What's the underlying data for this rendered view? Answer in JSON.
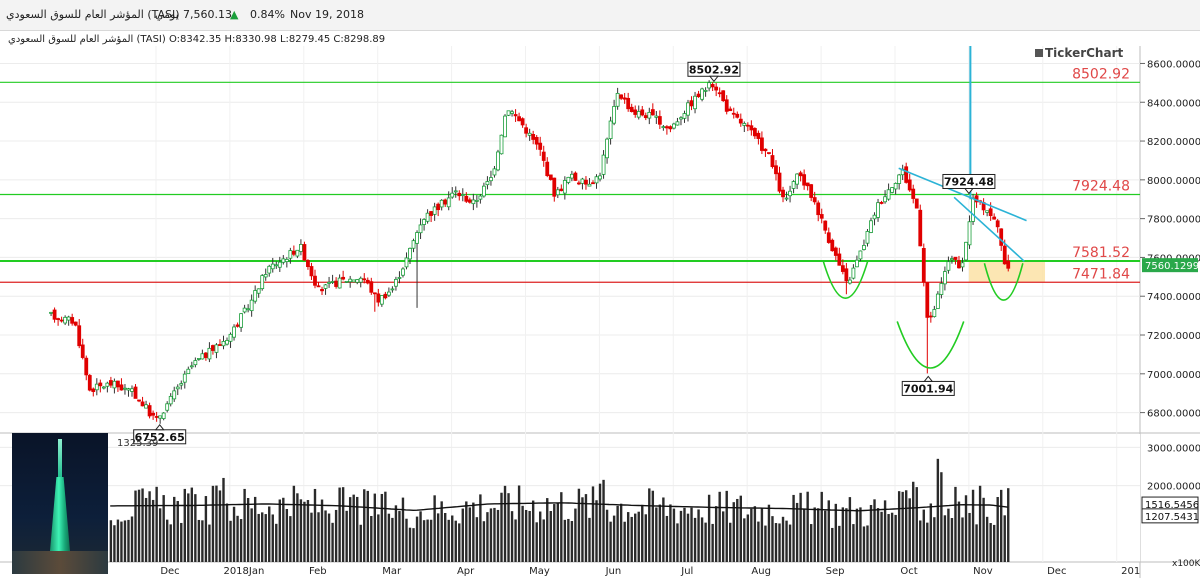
{
  "header": {
    "symbol_name": "المؤشر العام للسوق السعودي (TASI)",
    "period": "يومي",
    "price": "7,560.13",
    "change": "0.84%",
    "date": "Nov 19, 2018",
    "up_color": "#1a9e3a"
  },
  "info_line": "المؤشر العام للسوق السعودي (TASI) O:8342.35 H:8330.98 L:8279.45 C:8298.89",
  "watermark": "TickerChart",
  "price_axis": {
    "ticks": [
      "8600.0000",
      "8400.0000",
      "8200.0000",
      "8000.0000",
      "7800.0000",
      "7600.0000",
      "7400.0000",
      "7200.0000",
      "7000.0000",
      "6800.0000"
    ],
    "tick_values": [
      8600,
      8400,
      8200,
      8000,
      7800,
      7600,
      7400,
      7200,
      7000,
      6800
    ],
    "current_label": "7560.1299",
    "current_value": 7560.13,
    "current_color": "#2aa84a"
  },
  "volume_axis": {
    "ticks": [
      "3000.0000",
      "2000.0000"
    ],
    "tick_values": [
      3000,
      2000
    ],
    "label_a": "1516.5456",
    "label_b": "1207.5431",
    "value_a": 1516.5,
    "value_b": 1207.5,
    "unit": "x100K",
    "readout": "1325.39"
  },
  "months": [
    "Dec",
    "2018Jan",
    "Feb",
    "Mar",
    "Apr",
    "May",
    "Jun",
    "Jul",
    "Aug",
    "Sep",
    "Oct",
    "Nov",
    "Dec",
    "201"
  ],
  "chart_data": {
    "type": "candlestick",
    "y_range": [
      6700,
      8690
    ],
    "x_axis_labels": [
      "Dec",
      "2018Jan",
      "Feb",
      "Mar",
      "Apr",
      "May",
      "Jun",
      "Jul",
      "Aug",
      "Sep",
      "Oct",
      "Nov",
      "Dec",
      "201"
    ],
    "horizontal_levels": [
      {
        "value": 8502.92,
        "label": "8502.92",
        "color": "#22cc22"
      },
      {
        "value": 7924.48,
        "label": "7924.48",
        "color": "#22cc22"
      },
      {
        "value": 7581.52,
        "label": "7581.52",
        "color": "#22cc22"
      },
      {
        "value": 7471.84,
        "label": "7471.84",
        "color": "#dd2222"
      }
    ],
    "annotations": [
      {
        "label": "8502.92",
        "value": 8502.92,
        "month_index": 7.55
      },
      {
        "label": "7924.48",
        "value": 7924.48,
        "month_index": 11.0
      },
      {
        "label": "7001.94",
        "value": 7001.94,
        "month_index": 10.45
      },
      {
        "label": "6752.65",
        "value": 6752.65,
        "month_index": 0.05
      }
    ],
    "trend_lines": [
      {
        "from": [
          10.05,
          8060
        ],
        "to": [
          11.78,
          7790
        ],
        "color": "#2bb3d6"
      },
      {
        "from": [
          10.8,
          7910
        ],
        "to": [
          11.75,
          7580
        ],
        "color": "#2bb3d6"
      }
    ],
    "vertical_line": {
      "month_index": 11.02,
      "from": 7900,
      "to": 8690,
      "color": "#2bb3d6"
    },
    "cup_arcs": [
      {
        "center": 9.33,
        "half_width": 0.3,
        "top": 7580,
        "bottom": 7390,
        "color": "#22cc22"
      },
      {
        "center": 10.48,
        "half_width": 0.45,
        "top": 7270,
        "bottom": 7030,
        "color": "#22cc22"
      },
      {
        "center": 11.47,
        "half_width": 0.26,
        "top": 7570,
        "bottom": 7380,
        "color": "#22cc22"
      }
    ],
    "highlight_zone": {
      "from_month": 11.0,
      "to_month": 12.03,
      "low": 7471.84,
      "high": 7581.52,
      "color": "#fbe2a6"
    },
    "price_path": [
      [
        -1.42,
        7300
      ],
      [
        -1.1,
        7270
      ],
      [
        -0.9,
        6920
      ],
      [
        -0.6,
        6950
      ],
      [
        -0.3,
        6900
      ],
      [
        0.0,
        6760
      ],
      [
        0.2,
        6870
      ],
      [
        0.5,
        7050
      ],
      [
        0.75,
        7120
      ],
      [
        1.0,
        7200
      ],
      [
        1.3,
        7380
      ],
      [
        1.5,
        7540
      ],
      [
        1.75,
        7600
      ],
      [
        1.95,
        7660
      ],
      [
        2.2,
        7430
      ],
      [
        2.5,
        7480
      ],
      [
        2.8,
        7500
      ],
      [
        3.0,
        7380
      ],
      [
        3.2,
        7440
      ],
      [
        3.4,
        7600
      ],
      [
        3.6,
        7800
      ],
      [
        3.85,
        7870
      ],
      [
        4.05,
        7940
      ],
      [
        4.3,
        7880
      ],
      [
        4.55,
        8020
      ],
      [
        4.75,
        8380
      ],
      [
        4.95,
        8290
      ],
      [
        5.2,
        8150
      ],
      [
        5.4,
        7920
      ],
      [
        5.6,
        8020
      ],
      [
        5.8,
        7980
      ],
      [
        6.0,
        8020
      ],
      [
        6.25,
        8460
      ],
      [
        6.45,
        8350
      ],
      [
        6.7,
        8330
      ],
      [
        6.95,
        8260
      ],
      [
        7.2,
        8380
      ],
      [
        7.4,
        8460
      ],
      [
        7.55,
        8500
      ],
      [
        7.75,
        8350
      ],
      [
        8.0,
        8270
      ],
      [
        8.3,
        8120
      ],
      [
        8.5,
        7880
      ],
      [
        8.7,
        8030
      ],
      [
        8.9,
        7900
      ],
      [
        9.1,
        7700
      ],
      [
        9.35,
        7460
      ],
      [
        9.55,
        7640
      ],
      [
        9.75,
        7860
      ],
      [
        9.95,
        7970
      ],
      [
        10.1,
        8050
      ],
      [
        10.3,
        7850
      ],
      [
        10.45,
        7240
      ],
      [
        10.6,
        7420
      ],
      [
        10.75,
        7620
      ],
      [
        10.9,
        7520
      ],
      [
        11.05,
        7900
      ],
      [
        11.25,
        7850
      ],
      [
        11.4,
        7750
      ],
      [
        11.52,
        7500
      ],
      [
        11.55,
        7560
      ]
    ],
    "volume_ma_path": [
      [
        -1.42,
        1450
      ],
      [
        -0.5,
        1470
      ],
      [
        0.5,
        1480
      ],
      [
        1.5,
        1520
      ],
      [
        2.5,
        1470
      ],
      [
        3.5,
        1350
      ],
      [
        4.5,
        1520
      ],
      [
        5.5,
        1550
      ],
      [
        6.5,
        1480
      ],
      [
        7.5,
        1430
      ],
      [
        8.5,
        1400
      ],
      [
        9.5,
        1340
      ],
      [
        10.3,
        1420
      ],
      [
        10.9,
        1500
      ],
      [
        11.3,
        1490
      ],
      [
        11.55,
        1430
      ]
    ],
    "volume_spikes": [
      {
        "month_index": 0.8,
        "value": 2000
      },
      {
        "month_index": 0.9,
        "value": 2200
      },
      {
        "month_index": 6.0,
        "value": 2050
      },
      {
        "month_index": 6.05,
        "value": 2150
      },
      {
        "month_index": 10.25,
        "value": 2100
      },
      {
        "month_index": 10.3,
        "value": 1960
      },
      {
        "month_index": 10.6,
        "value": 2700
      },
      {
        "month_index": 10.65,
        "value": 2350
      }
    ]
  }
}
